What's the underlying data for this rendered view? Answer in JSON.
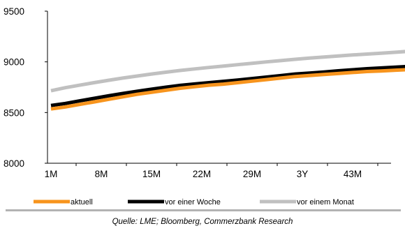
{
  "chart_data": {
    "type": "line",
    "title": "",
    "xlabel": "",
    "ylabel": "",
    "ylim": [
      8000,
      9500
    ],
    "yticks": [
      8000,
      8500,
      9000,
      9500
    ],
    "xticks": [
      "1M",
      "8M",
      "15M",
      "22M",
      "29M",
      "3Y",
      "43M"
    ],
    "x": [
      "1M",
      "3M",
      "5M",
      "7M",
      "9M",
      "11M",
      "13M",
      "15M",
      "17M",
      "19M",
      "21M",
      "23M",
      "25M",
      "27M",
      "29M",
      "31M",
      "33M",
      "35M",
      "37M",
      "39M",
      "41M",
      "43M",
      "45M",
      "47M",
      "49M",
      "51M"
    ],
    "series": [
      {
        "name": "aktuell",
        "color": "#f7941d",
        "values": [
          8535,
          8555,
          8580,
          8605,
          8630,
          8655,
          8680,
          8700,
          8720,
          8740,
          8755,
          8770,
          8780,
          8795,
          8810,
          8825,
          8840,
          8855,
          8865,
          8875,
          8885,
          8895,
          8905,
          8910,
          8918,
          8925
        ]
      },
      {
        "name": "vor einer Woche",
        "color": "#000000",
        "values": [
          8570,
          8590,
          8615,
          8640,
          8665,
          8688,
          8710,
          8730,
          8750,
          8768,
          8782,
          8795,
          8808,
          8820,
          8835,
          8850,
          8865,
          8880,
          8890,
          8900,
          8912,
          8922,
          8932,
          8940,
          8948,
          8955
        ]
      },
      {
        "name": "vor einem Monat",
        "color": "#c0c0c0",
        "values": [
          8715,
          8745,
          8770,
          8795,
          8818,
          8840,
          8860,
          8880,
          8898,
          8915,
          8930,
          8945,
          8958,
          8972,
          8985,
          9000,
          9012,
          9025,
          9037,
          9048,
          9058,
          9068,
          9077,
          9086,
          9095,
          9105
        ]
      }
    ],
    "grid": false,
    "legend_position": "bottom"
  },
  "source": "Quelle: LME; Bloomberg, Commerzbank Research"
}
